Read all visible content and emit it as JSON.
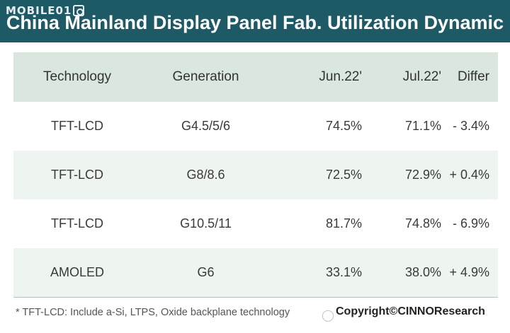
{
  "watermark": {
    "brand": "MOBILE01"
  },
  "title": "China Mainland Display Panel Fab. Utilization Dynamic",
  "table": {
    "headers": [
      "Technology",
      "Generation",
      "Jun.22'",
      "Jul.22'",
      "Differ"
    ],
    "rows": [
      [
        "TFT-LCD",
        "G4.5/5/6",
        "74.5%",
        "71.1%",
        "- 3.4%"
      ],
      [
        "TFT-LCD",
        "G8/8.6",
        "72.5%",
        "72.9%",
        "+ 0.4%"
      ],
      [
        "TFT-LCD",
        "G10.5/11",
        "81.7%",
        "74.8%",
        "- 6.9%"
      ],
      [
        "AMOLED",
        "G6",
        "33.1%",
        "38.0%",
        "+ 4.9%"
      ]
    ]
  },
  "footnote": "* TFT-LCD: Include a-Si, LTPS, Oxide backplane technology",
  "copyright": "Copyright©CINNOResearch",
  "bottom_watermark": {
    "icon": "chat-bubble-icon"
  },
  "colors": {
    "title_bar": "#1e5a66",
    "header_bg": "#d9e7df",
    "stripe_bg": "#eef4f0"
  }
}
